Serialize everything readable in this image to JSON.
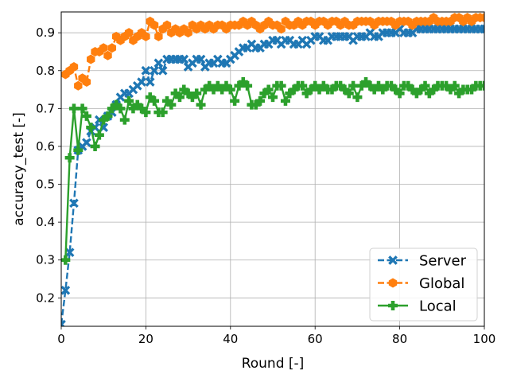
{
  "chart_data": {
    "type": "line",
    "xlabel": "Round [-]",
    "ylabel": "accuracy_test [-]",
    "xlim": [
      0,
      100
    ],
    "ylim": [
      0.125,
      0.955
    ],
    "xticks": [
      0,
      20,
      40,
      60,
      80,
      100
    ],
    "xtick_labels": [
      "0",
      "20",
      "40",
      "60",
      "80",
      "100"
    ],
    "yticks": [
      0.2,
      0.3,
      0.4,
      0.5,
      0.6,
      0.7,
      0.8,
      0.9
    ],
    "ytick_labels": [
      "0.2",
      "0.3",
      "0.4",
      "0.5",
      "0.6",
      "0.7",
      "0.8",
      "0.9"
    ],
    "grid": true,
    "legend_position": "lower-right",
    "series": [
      {
        "name": "Server",
        "color": "#1f77b4",
        "linestyle": "dashed",
        "marker": "x",
        "x": [
          0,
          1,
          2,
          3,
          4,
          5,
          6,
          7,
          8,
          9,
          10,
          11,
          12,
          13,
          14,
          15,
          16,
          17,
          18,
          19,
          20,
          21,
          22,
          23,
          24,
          25,
          26,
          27,
          28,
          29,
          30,
          31,
          32,
          33,
          34,
          35,
          36,
          37,
          38,
          39,
          40,
          41,
          42,
          43,
          44,
          45,
          46,
          47,
          48,
          49,
          50,
          51,
          52,
          53,
          54,
          55,
          56,
          57,
          58,
          59,
          60,
          61,
          62,
          63,
          64,
          65,
          66,
          67,
          68,
          69,
          70,
          71,
          72,
          73,
          74,
          75,
          76,
          77,
          78,
          79,
          80,
          81,
          82,
          83,
          84,
          85,
          86,
          87,
          88,
          89,
          90,
          91,
          92,
          93,
          94,
          95,
          96,
          97,
          98,
          99,
          100
        ],
        "values": [
          0.13,
          0.22,
          0.32,
          0.45,
          0.59,
          0.6,
          0.61,
          0.64,
          0.65,
          0.67,
          0.65,
          0.68,
          0.69,
          0.71,
          0.73,
          0.74,
          0.74,
          0.75,
          0.76,
          0.77,
          0.8,
          0.77,
          0.8,
          0.82,
          0.8,
          0.83,
          0.83,
          0.83,
          0.83,
          0.83,
          0.81,
          0.82,
          0.83,
          0.83,
          0.81,
          0.82,
          0.82,
          0.83,
          0.82,
          0.82,
          0.83,
          0.84,
          0.85,
          0.86,
          0.86,
          0.87,
          0.86,
          0.86,
          0.87,
          0.87,
          0.88,
          0.88,
          0.87,
          0.88,
          0.88,
          0.87,
          0.87,
          0.88,
          0.87,
          0.88,
          0.89,
          0.89,
          0.88,
          0.88,
          0.89,
          0.89,
          0.89,
          0.89,
          0.89,
          0.88,
          0.89,
          0.89,
          0.89,
          0.9,
          0.89,
          0.89,
          0.9,
          0.9,
          0.9,
          0.9,
          0.91,
          0.9,
          0.9,
          0.9,
          0.91,
          0.91,
          0.91,
          0.91,
          0.91,
          0.91,
          0.91,
          0.91,
          0.91,
          0.91,
          0.91,
          0.91,
          0.91,
          0.91,
          0.91,
          0.91,
          0.91
        ]
      },
      {
        "name": "Global",
        "color": "#ff7f0e",
        "linestyle": "dashed",
        "marker": "h",
        "x": [
          1,
          2,
          3,
          4,
          5,
          6,
          7,
          8,
          9,
          10,
          11,
          12,
          13,
          14,
          15,
          16,
          17,
          18,
          19,
          20,
          21,
          22,
          23,
          24,
          25,
          26,
          27,
          28,
          29,
          30,
          31,
          32,
          33,
          34,
          35,
          36,
          37,
          38,
          39,
          40,
          41,
          42,
          43,
          44,
          45,
          46,
          47,
          48,
          49,
          50,
          51,
          52,
          53,
          54,
          55,
          56,
          57,
          58,
          59,
          60,
          61,
          62,
          63,
          64,
          65,
          66,
          67,
          68,
          69,
          70,
          71,
          72,
          73,
          74,
          75,
          76,
          77,
          78,
          79,
          80,
          81,
          82,
          83,
          84,
          85,
          86,
          87,
          88,
          89,
          90,
          91,
          92,
          93,
          94,
          95,
          96,
          97,
          98,
          99,
          100
        ],
        "values": [
          0.79,
          0.8,
          0.81,
          0.76,
          0.78,
          0.77,
          0.83,
          0.85,
          0.85,
          0.86,
          0.84,
          0.86,
          0.89,
          0.88,
          0.89,
          0.9,
          0.88,
          0.89,
          0.9,
          0.89,
          0.93,
          0.92,
          0.89,
          0.91,
          0.92,
          0.9,
          0.91,
          0.9,
          0.91,
          0.9,
          0.92,
          0.91,
          0.92,
          0.91,
          0.92,
          0.91,
          0.92,
          0.92,
          0.91,
          0.92,
          0.92,
          0.92,
          0.93,
          0.92,
          0.93,
          0.92,
          0.91,
          0.92,
          0.93,
          0.92,
          0.92,
          0.91,
          0.93,
          0.92,
          0.92,
          0.93,
          0.92,
          0.93,
          0.93,
          0.92,
          0.93,
          0.93,
          0.92,
          0.93,
          0.93,
          0.92,
          0.93,
          0.92,
          0.92,
          0.93,
          0.93,
          0.93,
          0.93,
          0.92,
          0.93,
          0.93,
          0.93,
          0.93,
          0.92,
          0.93,
          0.93,
          0.93,
          0.92,
          0.93,
          0.93,
          0.93,
          0.93,
          0.94,
          0.93,
          0.93,
          0.93,
          0.93,
          0.94,
          0.94,
          0.93,
          0.94,
          0.93,
          0.94,
          0.94,
          0.94
        ]
      },
      {
        "name": "Local",
        "color": "#2ca02c",
        "linestyle": "solid",
        "marker": "P",
        "x": [
          1,
          2,
          3,
          4,
          5,
          6,
          7,
          8,
          9,
          10,
          11,
          12,
          13,
          14,
          15,
          16,
          17,
          18,
          19,
          20,
          21,
          22,
          23,
          24,
          25,
          26,
          27,
          28,
          29,
          30,
          31,
          32,
          33,
          34,
          35,
          36,
          37,
          38,
          39,
          40,
          41,
          42,
          43,
          44,
          45,
          46,
          47,
          48,
          49,
          50,
          51,
          52,
          53,
          54,
          55,
          56,
          57,
          58,
          59,
          60,
          61,
          62,
          63,
          64,
          65,
          66,
          67,
          68,
          69,
          70,
          71,
          72,
          73,
          74,
          75,
          76,
          77,
          78,
          79,
          80,
          81,
          82,
          83,
          84,
          85,
          86,
          87,
          88,
          89,
          90,
          91,
          92,
          93,
          94,
          95,
          96,
          97,
          98,
          99,
          100
        ],
        "values": [
          0.3,
          0.57,
          0.7,
          0.59,
          0.7,
          0.68,
          0.65,
          0.6,
          0.63,
          0.67,
          0.68,
          0.7,
          0.71,
          0.7,
          0.67,
          0.72,
          0.7,
          0.71,
          0.7,
          0.69,
          0.73,
          0.72,
          0.69,
          0.69,
          0.72,
          0.71,
          0.74,
          0.73,
          0.75,
          0.74,
          0.73,
          0.74,
          0.71,
          0.75,
          0.76,
          0.75,
          0.76,
          0.75,
          0.76,
          0.75,
          0.72,
          0.76,
          0.77,
          0.76,
          0.71,
          0.71,
          0.72,
          0.74,
          0.75,
          0.73,
          0.76,
          0.76,
          0.72,
          0.74,
          0.75,
          0.76,
          0.76,
          0.74,
          0.75,
          0.76,
          0.75,
          0.76,
          0.75,
          0.75,
          0.76,
          0.76,
          0.75,
          0.74,
          0.76,
          0.73,
          0.76,
          0.77,
          0.76,
          0.75,
          0.76,
          0.75,
          0.76,
          0.76,
          0.75,
          0.74,
          0.76,
          0.76,
          0.75,
          0.74,
          0.75,
          0.76,
          0.74,
          0.75,
          0.76,
          0.76,
          0.76,
          0.75,
          0.76,
          0.74,
          0.75,
          0.75,
          0.75,
          0.76,
          0.76,
          0.76
        ]
      }
    ]
  }
}
